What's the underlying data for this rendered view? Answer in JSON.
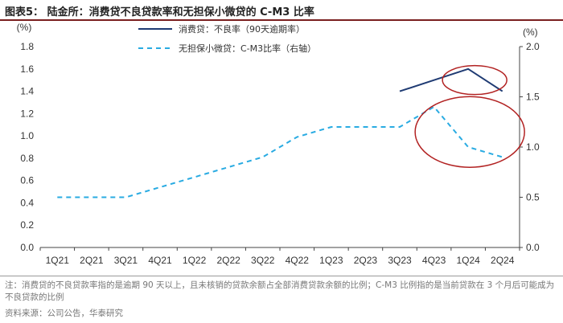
{
  "figure": {
    "title": "图表5： 陆金所：消费贷不良贷款率和无担保小微贷的 C-M3 比率",
    "note": "注：消费贷的不良贷款率指的是逾期 90 天以上，且未核销的贷款余额占全部消费贷款余额的比例；C-M3 比例指的是当前贷款在 3 个月后可能成为不良贷款的比例",
    "source": "资料来源：公司公告，华泰研究"
  },
  "chart_data": {
    "type": "line",
    "title": "陆金所：消费贷不良贷款率和无担保小微贷的 C-M3 比率",
    "categories": [
      "1Q21",
      "2Q21",
      "3Q21",
      "4Q21",
      "1Q22",
      "2Q22",
      "3Q22",
      "4Q22",
      "1Q23",
      "2Q23",
      "3Q23",
      "4Q23",
      "1Q24",
      "2Q24"
    ],
    "left_axis": {
      "unit_label": "(%)",
      "ylim": [
        0,
        1.8
      ],
      "ticks": [
        "0.0",
        "0.2",
        "0.4",
        "0.6",
        "0.8",
        "1.0",
        "1.2",
        "1.4",
        "1.6",
        "1.8"
      ],
      "tick_values": [
        0,
        0.2,
        0.4,
        0.6,
        0.8,
        1.0,
        1.2,
        1.4,
        1.6,
        1.8
      ]
    },
    "right_axis": {
      "unit_label": "(%)",
      "ylim": [
        0,
        2.0
      ],
      "ticks": [
        "0.0",
        "0.5",
        "1.0",
        "1.5",
        "2.0"
      ],
      "tick_values": [
        0,
        0.5,
        1.0,
        1.5,
        2.0
      ]
    },
    "series": [
      {
        "name": "消费贷：不良率（90天逾期率）",
        "axis": "left",
        "style": "solid",
        "color": "#1f3b73",
        "values": [
          null,
          null,
          null,
          null,
          null,
          null,
          null,
          null,
          null,
          null,
          1.4,
          1.5,
          1.6,
          1.4
        ]
      },
      {
        "name": "无担保小微贷：C-M3比率（右轴）",
        "axis": "right",
        "style": "dashed",
        "color": "#29abe2",
        "values": [
          0.5,
          0.5,
          0.5,
          0.6,
          0.7,
          0.8,
          0.9,
          1.1,
          1.2,
          1.2,
          1.2,
          1.4,
          1.0,
          0.9
        ]
      }
    ],
    "annotations": [
      {
        "type": "ellipse",
        "color": "#b22222",
        "label": "highlight-npl-rise"
      },
      {
        "type": "ellipse",
        "color": "#b22222",
        "label": "highlight-cm3-drop"
      }
    ],
    "grid": false,
    "legend": "top-center"
  }
}
